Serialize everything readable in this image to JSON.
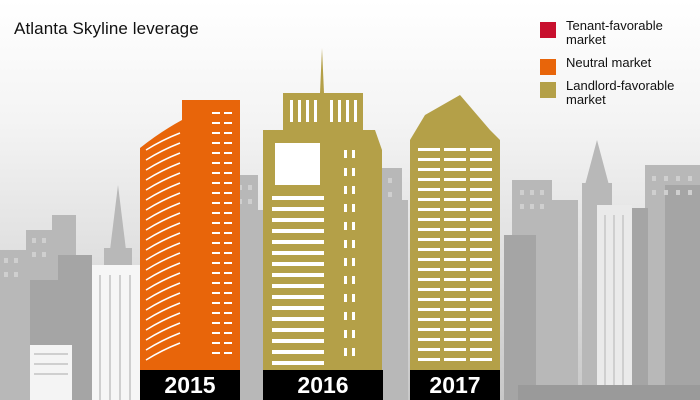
{
  "title": "Atlanta Skyline leverage",
  "legend": [
    {
      "label": "Tenant-favorable market",
      "color": "#c8102e"
    },
    {
      "label": "Neutral market",
      "color": "#e8650a"
    },
    {
      "label": "Landlord-favorable market",
      "color": "#b4a048"
    }
  ],
  "years": [
    {
      "label": "2015",
      "market": "Neutral market",
      "color": "#e8650a"
    },
    {
      "label": "2016",
      "market": "Landlord-favorable market",
      "color": "#b4a048"
    },
    {
      "label": "2017",
      "market": "Landlord-favorable market",
      "color": "#b4a048"
    }
  ]
}
